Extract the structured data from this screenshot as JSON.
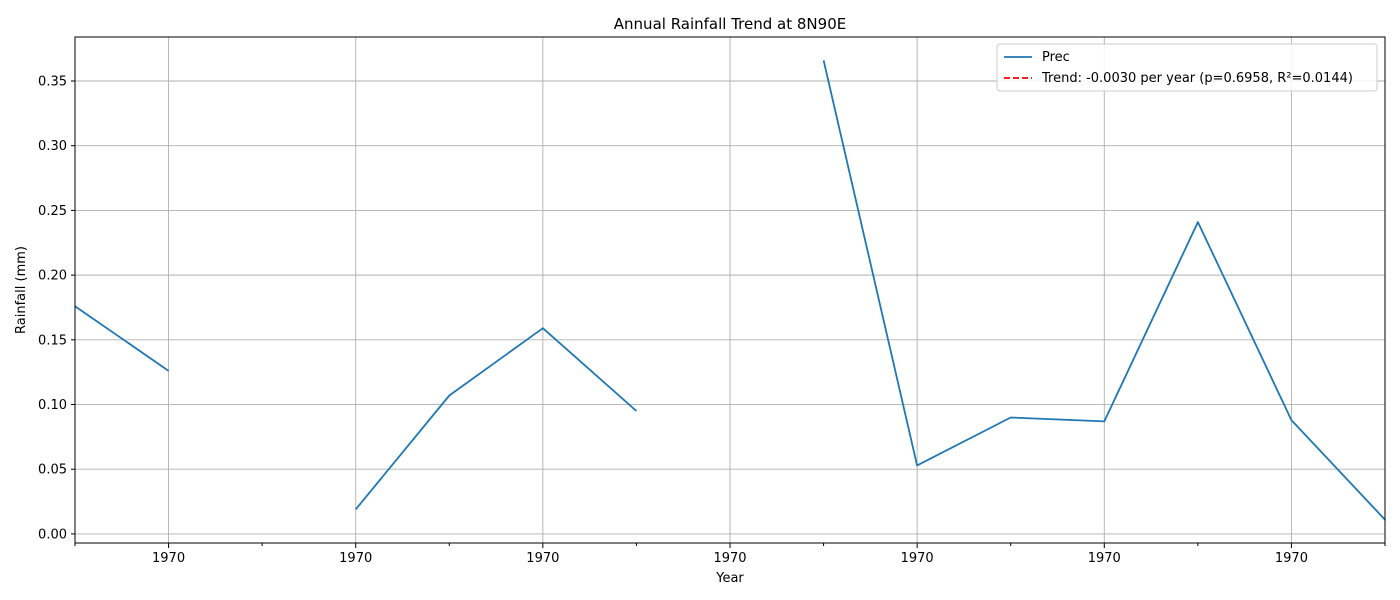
{
  "chart_data": {
    "type": "line",
    "title": "Annual Rainfall Trend at 8N90E",
    "xlabel": "Year",
    "ylabel": "Rainfall (mm)",
    "x_tick_labels": [
      "1970",
      "1970",
      "1970",
      "1970",
      "1970",
      "1970",
      "1970"
    ],
    "xlim": [
      0,
      14
    ],
    "ylim": [
      -0.007,
      0.384
    ],
    "y_ticks": [
      0.0,
      0.05,
      0.1,
      0.15,
      0.2,
      0.25,
      0.3,
      0.35
    ],
    "y_tick_labels": [
      "0.00",
      "0.05",
      "0.10",
      "0.15",
      "0.20",
      "0.25",
      "0.30",
      "0.35"
    ],
    "grid": true,
    "legend_position": "top-right",
    "series": [
      {
        "name": "Prec",
        "color": "#1f77b4",
        "style": "solid",
        "x": [
          0,
          1,
          2,
          3,
          4,
          5,
          6,
          7,
          8,
          9,
          10,
          11,
          12,
          13,
          14
        ],
        "values": [
          0.176,
          0.126,
          null,
          0.019,
          0.107,
          0.159,
          0.095,
          null,
          0.366,
          0.053,
          0.09,
          0.087,
          0.241,
          0.088,
          0.011
        ]
      },
      {
        "name": "Trend: -0.0030 per year (p=0.6958, R²=0.0144)",
        "color": "#ff0000",
        "style": "dashed",
        "values": []
      }
    ]
  }
}
